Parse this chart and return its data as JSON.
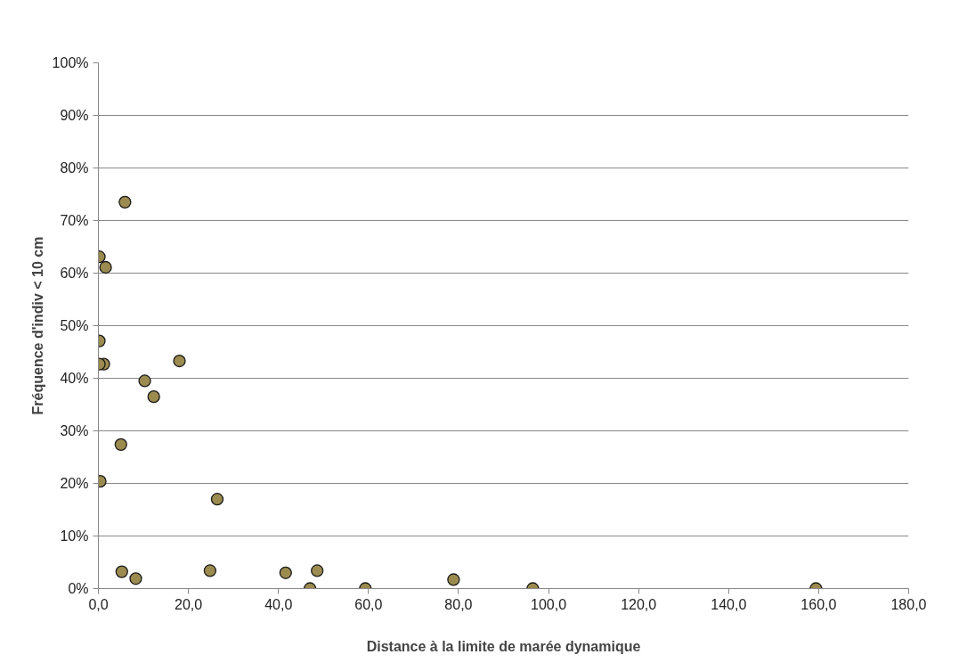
{
  "chart_data": {
    "type": "scatter",
    "xlabel": "Distance à la limite de marée dynamique",
    "ylabel": "Fréquence d'indiv < 10 cm",
    "x": [
      0.2,
      5.9,
      1.6,
      0.2,
      0.2,
      1.2,
      18.0,
      10.3,
      12.3,
      5.0,
      0.4,
      26.4,
      5.2,
      8.3,
      24.8,
      41.6,
      47.0,
      48.6,
      59.3,
      78.9,
      96.5,
      159.4
    ],
    "series": [
      {
        "color": "#9b8b4f",
        "values": [
          63.1,
          73.5,
          61.1,
          47.1,
          42.7,
          42.7,
          43.3,
          39.5,
          36.5,
          27.4,
          20.4,
          17.0,
          3.2,
          1.9,
          3.4,
          3.0,
          0,
          3.4,
          0,
          1.7,
          0,
          0
        ]
      }
    ],
    "xlim": [
      0,
      180
    ],
    "ylim": [
      0,
      100
    ],
    "xticks": [
      {
        "value": 0,
        "label": "0,0"
      },
      {
        "value": 20,
        "label": "20,0"
      },
      {
        "value": 40,
        "label": "40,0"
      },
      {
        "value": 60,
        "label": "60,0"
      },
      {
        "value": 80,
        "label": "80,0"
      },
      {
        "value": 100,
        "label": "100,0"
      },
      {
        "value": 120,
        "label": "120,0"
      },
      {
        "value": 140,
        "label": "140,0"
      },
      {
        "value": 160,
        "label": "160,0"
      },
      {
        "value": 180,
        "label": "180,0"
      }
    ],
    "yticks": [
      {
        "value": 0,
        "label": "0%"
      },
      {
        "value": 10,
        "label": "10%"
      },
      {
        "value": 20,
        "label": "20%"
      },
      {
        "value": 30,
        "label": "30%"
      },
      {
        "value": 40,
        "label": "40%"
      },
      {
        "value": 50,
        "label": "50%"
      },
      {
        "value": 60,
        "label": "60%"
      },
      {
        "value": 70,
        "label": "70%"
      },
      {
        "value": 80,
        "label": "80%"
      },
      {
        "value": 90,
        "label": "90%"
      },
      {
        "value": 100,
        "label": "100%"
      }
    ],
    "grid": "y",
    "marker": "circle"
  }
}
